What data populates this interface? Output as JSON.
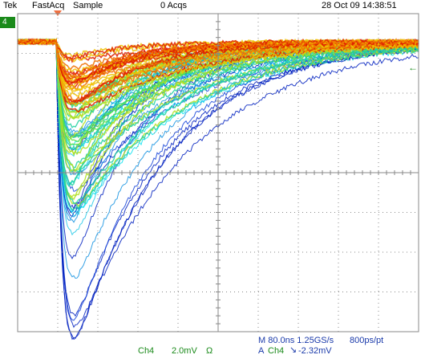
{
  "header": {
    "brand": "Tek",
    "mode": "FastAcq",
    "acquire": "Sample",
    "acqs": "0 Acqs",
    "datetime": "28 Oct 09 14:38:51"
  },
  "channel": {
    "badge": "4",
    "label": "Ch4",
    "scale": "2.0mV",
    "coupling": "Ω"
  },
  "timebase": {
    "line": "M 80.0ns 1.25GS/s",
    "resolution": "800ps/pt"
  },
  "trigger": {
    "source_prefix": "A",
    "source": "Ch4",
    "slope_icon": "falling-edge-icon",
    "level": "-2.32mV"
  },
  "colors": {
    "grid": "#888888",
    "channel": "#1a8a1a",
    "trigger_marker": "#f07040"
  }
}
